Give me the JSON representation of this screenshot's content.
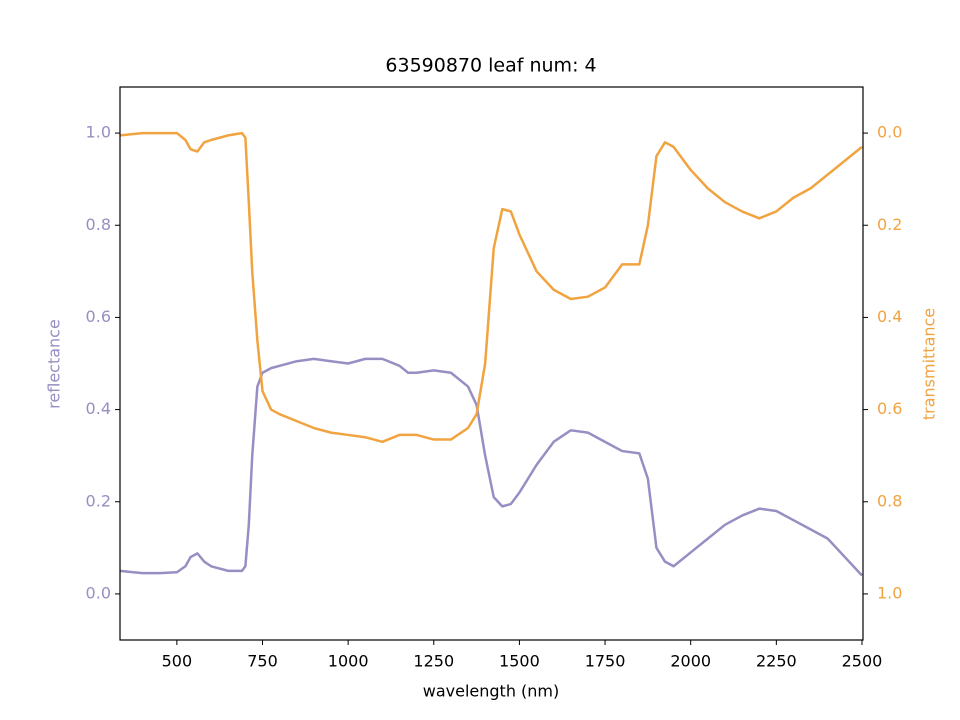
{
  "chart_data": {
    "type": "line",
    "title": "63590870 leaf num: 4",
    "xlabel": "wavelength (nm)",
    "ylabel": "reflectance",
    "y2label": "transmittance",
    "x": [
      334,
      400,
      450,
      500,
      525,
      540,
      560,
      580,
      600,
      650,
      690,
      700,
      710,
      720,
      735,
      750,
      775,
      800,
      850,
      900,
      950,
      1000,
      1050,
      1100,
      1150,
      1175,
      1200,
      1250,
      1300,
      1350,
      1375,
      1400,
      1425,
      1450,
      1475,
      1500,
      1550,
      1600,
      1650,
      1700,
      1750,
      1800,
      1850,
      1875,
      1900,
      1925,
      1950,
      2000,
      2050,
      2100,
      2150,
      2200,
      2250,
      2300,
      2350,
      2400,
      2450,
      2500
    ],
    "series": [
      {
        "color": "#998ec3",
        "values": [
          0.05,
          0.045,
          0.045,
          0.047,
          0.06,
          0.08,
          0.088,
          0.07,
          0.06,
          0.05,
          0.05,
          0.06,
          0.15,
          0.3,
          0.45,
          0.48,
          0.49,
          0.495,
          0.505,
          0.51,
          0.505,
          0.5,
          0.51,
          0.51,
          0.495,
          0.48,
          0.48,
          0.485,
          0.48,
          0.45,
          0.41,
          0.3,
          0.21,
          0.19,
          0.195,
          0.22,
          0.28,
          0.33,
          0.355,
          0.35,
          0.33,
          0.31,
          0.305,
          0.25,
          0.1,
          0.07,
          0.06,
          0.09,
          0.12,
          0.15,
          0.17,
          0.185,
          0.18,
          0.16,
          0.14,
          0.12,
          0.08,
          0.04
        ]
      },
      {
        "color": "#f1a340",
        "axis": "y2",
        "values": [
          0.005,
          0,
          0,
          0,
          0.015,
          0.035,
          0.04,
          0.02,
          0.015,
          0.005,
          0,
          0.01,
          0.15,
          0.3,
          0.45,
          0.56,
          0.6,
          0.61,
          0.625,
          0.64,
          0.65,
          0.655,
          0.66,
          0.67,
          0.655,
          0.655,
          0.655,
          0.665,
          0.665,
          0.64,
          0.61,
          0.5,
          0.25,
          0.165,
          0.17,
          0.22,
          0.3,
          0.34,
          0.36,
          0.355,
          0.335,
          0.285,
          0.285,
          0.2,
          0.05,
          0.02,
          0.03,
          0.08,
          0.12,
          0.15,
          0.17,
          0.185,
          0.17,
          0.14,
          0.12,
          0.09,
          0.06,
          0.03
        ]
      }
    ],
    "xlim": [
      334,
      2503
    ],
    "xticks": [
      500,
      750,
      1000,
      1250,
      1500,
      1750,
      2000,
      2250,
      2500
    ],
    "ylim": [
      -0.1,
      1.1
    ],
    "yticks": [
      {
        "value": 0,
        "label": "0.0"
      },
      0.2,
      0.4,
      0.6,
      0.8,
      {
        "value": 1,
        "label": "1.0"
      }
    ],
    "y2lim": [
      1.1,
      -0.1
    ],
    "y2ticks": [
      {
        "value": 0,
        "label": "0.0"
      },
      0.2,
      0.4,
      0.6,
      0.8,
      {
        "value": 1,
        "label": "1.0"
      }
    ]
  }
}
